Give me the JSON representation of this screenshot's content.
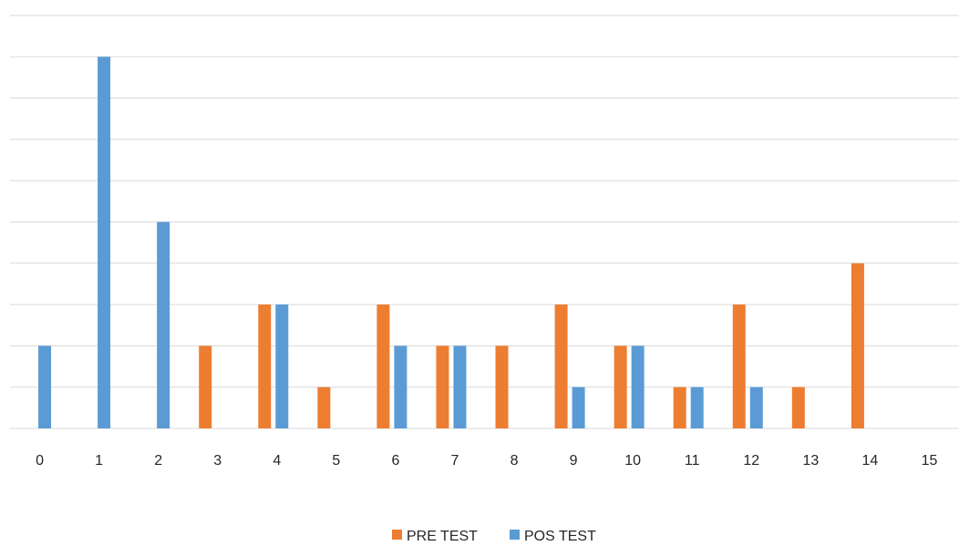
{
  "chart_data": {
    "type": "bar",
    "categories": [
      "0",
      "1",
      "2",
      "3",
      "4",
      "5",
      "6",
      "7",
      "8",
      "9",
      "10",
      "11",
      "12",
      "13",
      "14",
      "15"
    ],
    "series": [
      {
        "name": "PRE TEST",
        "color": "#ED7D31",
        "values": [
          0,
          0,
          0,
          2,
          3,
          1,
          3,
          2,
          2,
          3,
          2,
          1,
          3,
          1,
          4,
          0
        ]
      },
      {
        "name": "POS TEST",
        "color": "#5B9BD5",
        "values": [
          2,
          9,
          5,
          0,
          3,
          0,
          2,
          2,
          0,
          1,
          2,
          1,
          1,
          0,
          0,
          0
        ]
      }
    ],
    "ylim": [
      0,
      10
    ],
    "grid": true,
    "legend": "bottom",
    "gridline_color": "#D9D9D9"
  }
}
